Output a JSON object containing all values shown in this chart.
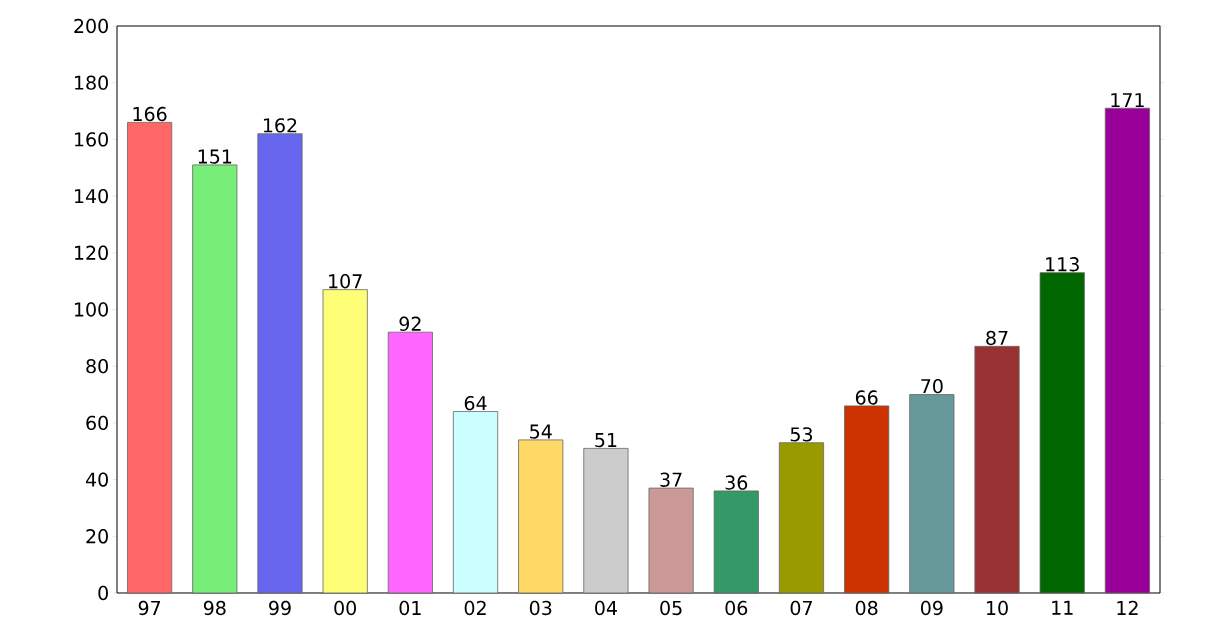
{
  "chart_data": {
    "type": "bar",
    "categories": [
      "97",
      "98",
      "99",
      "00",
      "01",
      "02",
      "03",
      "04",
      "05",
      "06",
      "07",
      "08",
      "09",
      "10",
      "11",
      "12"
    ],
    "values": [
      166,
      151,
      162,
      107,
      92,
      64,
      54,
      51,
      37,
      36,
      53,
      66,
      70,
      87,
      113,
      171
    ],
    "colors": [
      "#ff6666",
      "#77ee77",
      "#6666ee",
      "#ffff77",
      "#ff66ff",
      "#ccffff",
      "#ffd966",
      "#cccccc",
      "#cc9999",
      "#339966",
      "#999900",
      "#cc3300",
      "#669999",
      "#993333",
      "#006600",
      "#990099"
    ],
    "ylim": [
      0,
      200
    ],
    "yticks": [
      0,
      20,
      40,
      60,
      80,
      100,
      120,
      140,
      160,
      180,
      200
    ],
    "data_labels": true
  }
}
